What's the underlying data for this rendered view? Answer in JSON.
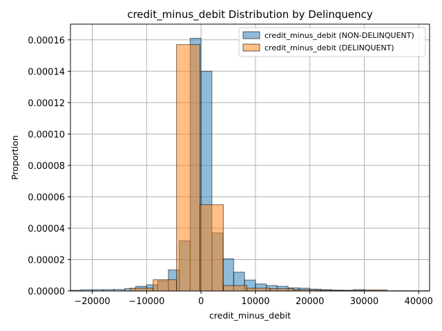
{
  "chart_data": {
    "type": "bar",
    "title": "credit_minus_debit Distribution by Delinquency",
    "xlabel": "credit_minus_debit",
    "ylabel": "Proportion",
    "xlim": [
      -24000,
      42000
    ],
    "ylim": [
      0,
      0.00017
    ],
    "x_ticks": [
      -20000,
      -10000,
      0,
      10000,
      20000,
      30000,
      40000
    ],
    "x_tick_labels": [
      "−20000",
      "−10000",
      "0",
      "10000",
      "20000",
      "30000",
      "40000"
    ],
    "y_ticks": [
      0,
      2e-05,
      4e-05,
      6e-05,
      8e-05,
      0.0001,
      0.00012,
      0.00014,
      0.00016
    ],
    "y_tick_labels": [
      "0.00000",
      "0.00002",
      "0.00004",
      "0.00006",
      "0.00008",
      "0.00010",
      "0.00012",
      "0.00014",
      "0.00016"
    ],
    "grid": true,
    "legend_position": "top-right",
    "series": [
      {
        "name": "credit_minus_debit (NON-DELINQUENT)",
        "color": "#1f77b4",
        "bins": [
          {
            "x0": -24000,
            "x1": -22000,
            "y": 5e-07
          },
          {
            "x0": -22000,
            "x1": -20000,
            "y": 8e-07
          },
          {
            "x0": -20000,
            "x1": -18000,
            "y": 9e-07
          },
          {
            "x0": -18000,
            "x1": -16000,
            "y": 9e-07
          },
          {
            "x0": -16000,
            "x1": -14000,
            "y": 1e-06
          },
          {
            "x0": -14000,
            "x1": -12000,
            "y": 1.6e-06
          },
          {
            "x0": -12000,
            "x1": -10000,
            "y": 3e-06
          },
          {
            "x0": -10000,
            "x1": -8000,
            "y": 4e-06
          },
          {
            "x0": -8000,
            "x1": -6000,
            "y": 6.5e-06
          },
          {
            "x0": -6000,
            "x1": -4000,
            "y": 1.35e-05
          },
          {
            "x0": -4000,
            "x1": -2000,
            "y": 3.2e-05
          },
          {
            "x0": -2000,
            "x1": 0,
            "y": 0.000161
          },
          {
            "x0": 0,
            "x1": 2000,
            "y": 0.00014
          },
          {
            "x0": 2000,
            "x1": 4000,
            "y": 3.7e-05
          },
          {
            "x0": 4000,
            "x1": 6000,
            "y": 2.05e-05
          },
          {
            "x0": 6000,
            "x1": 8000,
            "y": 1.2e-05
          },
          {
            "x0": 8000,
            "x1": 10000,
            "y": 7e-06
          },
          {
            "x0": 10000,
            "x1": 12000,
            "y": 4.5e-06
          },
          {
            "x0": 12000,
            "x1": 14000,
            "y": 3.5e-06
          },
          {
            "x0": 14000,
            "x1": 16000,
            "y": 3e-06
          },
          {
            "x0": 16000,
            "x1": 18000,
            "y": 2e-06
          },
          {
            "x0": 18000,
            "x1": 20000,
            "y": 1.8e-06
          },
          {
            "x0": 20000,
            "x1": 22000,
            "y": 1.2e-06
          },
          {
            "x0": 22000,
            "x1": 24000,
            "y": 9e-07
          },
          {
            "x0": 24000,
            "x1": 26000,
            "y": 6e-07
          },
          {
            "x0": 26000,
            "x1": 28000,
            "y": 5e-07
          },
          {
            "x0": 28000,
            "x1": 30000,
            "y": 9e-07
          },
          {
            "x0": 30000,
            "x1": 32000,
            "y": 4e-07
          },
          {
            "x0": 32000,
            "x1": 34000,
            "y": 3e-07
          },
          {
            "x0": 34000,
            "x1": 36000,
            "y": 2e-07
          },
          {
            "x0": 36000,
            "x1": 38000,
            "y": 2e-07
          },
          {
            "x0": 38000,
            "x1": 40000,
            "y": 2e-07
          },
          {
            "x0": 40000,
            "x1": 42000,
            "y": 2e-07
          }
        ]
      },
      {
        "name": "credit_minus_debit (DELINQUENT)",
        "color": "#ff7f0e",
        "bins": [
          {
            "x0": -13000,
            "x1": -8800,
            "y": 1.8e-06
          },
          {
            "x0": -8800,
            "x1": -4500,
            "y": 7.2e-06
          },
          {
            "x0": -4500,
            "x1": -200,
            "y": 0.000157
          },
          {
            "x0": -200,
            "x1": 4100,
            "y": 5.5e-05
          },
          {
            "x0": 4100,
            "x1": 8400,
            "y": 3.5e-06
          },
          {
            "x0": 8400,
            "x1": 12700,
            "y": 1.8e-06
          },
          {
            "x0": 12700,
            "x1": 17000,
            "y": 1.5e-06
          },
          {
            "x0": 17000,
            "x1": 21300,
            "y": 8e-07
          },
          {
            "x0": 21300,
            "x1": 25600,
            "y": 4e-07
          },
          {
            "x0": 25600,
            "x1": 29900,
            "y": 3e-07
          },
          {
            "x0": 29900,
            "x1": 34200,
            "y": 7e-07
          }
        ]
      }
    ]
  }
}
